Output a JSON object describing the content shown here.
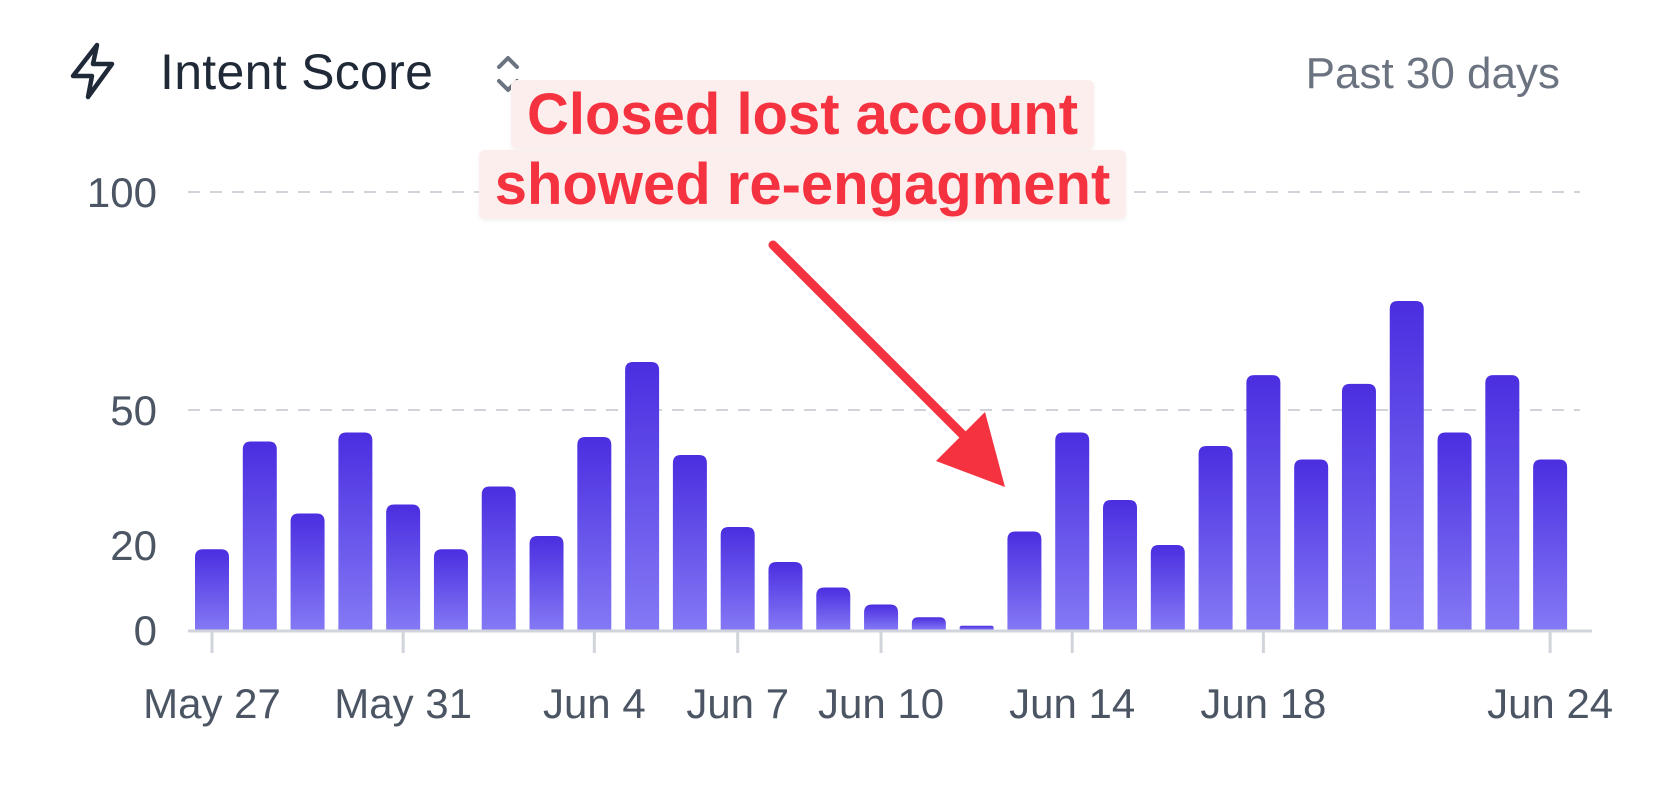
{
  "header": {
    "title": "Intent Score",
    "range_label": "Past 30 days",
    "icons": {
      "leading": "lightning-bolt-icon",
      "sort": "sort-arrows-icon"
    }
  },
  "annotation": {
    "line1": "Closed lost account",
    "line2": "showed re-engagment",
    "color": "#f5323f"
  },
  "chart_data": {
    "type": "bar",
    "x": [
      "May 27",
      "May 28",
      "May 29",
      "May 30",
      "May 31",
      "Jun 1",
      "Jun 2",
      "Jun 3",
      "Jun 4",
      "Jun 5",
      "Jun 6",
      "Jun 7",
      "Jun 8",
      "Jun 9",
      "Jun 10",
      "Jun 11",
      "Jun 12",
      "Jun 13",
      "Jun 14",
      "Jun 15",
      "Jun 16",
      "Jun 17",
      "Jun 18",
      "Jun 19",
      "Jun 20",
      "Jun 21",
      "Jun 22",
      "Jun 23",
      "Jun 24"
    ],
    "values": [
      19,
      43,
      27,
      45,
      29,
      19,
      33,
      22,
      44,
      61,
      40,
      24,
      16,
      10,
      6,
      3,
      1,
      23,
      45,
      30,
      20,
      42,
      58,
      39,
      56,
      75,
      45,
      58,
      39
    ],
    "x_tick_labels": [
      "May 27",
      "May 31",
      "Jun 4",
      "Jun 7",
      "Jun 10",
      "Jun 14",
      "Jun 18",
      "Jun 24"
    ],
    "y_tick_labels": [
      "0",
      "20",
      "50",
      "100"
    ],
    "ylim": [
      0,
      100
    ],
    "grid": true,
    "bar_color_top": "#4a2ee0",
    "bar_color_bottom": "#8479f5"
  }
}
